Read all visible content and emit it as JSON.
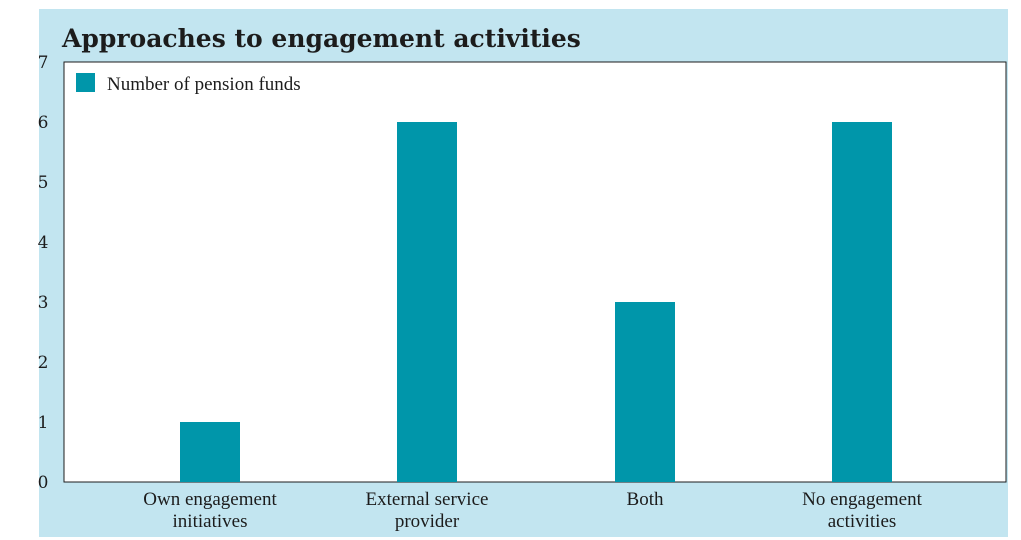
{
  "chart_data": {
    "type": "bar",
    "title": "Approaches to engagement activities",
    "xlabel": "",
    "ylabel": "",
    "categories": [
      [
        "Own engagement",
        "initiatives"
      ],
      [
        "External service",
        "provider"
      ],
      [
        "Both"
      ],
      [
        "No engagement",
        "activities"
      ]
    ],
    "series": [
      {
        "name": "Number of pension funds",
        "values": [
          1,
          6,
          3,
          6
        ]
      }
    ],
    "ylim": [
      0,
      7
    ],
    "yticks": [
      "0",
      "1",
      "2",
      "3",
      "4",
      "5",
      "6",
      "7"
    ],
    "grid": false,
    "legend": "top-left",
    "colors": {
      "bar": "#0096aa",
      "frame_background": "#c2e5f0",
      "plot_background": "#ffffff"
    }
  }
}
